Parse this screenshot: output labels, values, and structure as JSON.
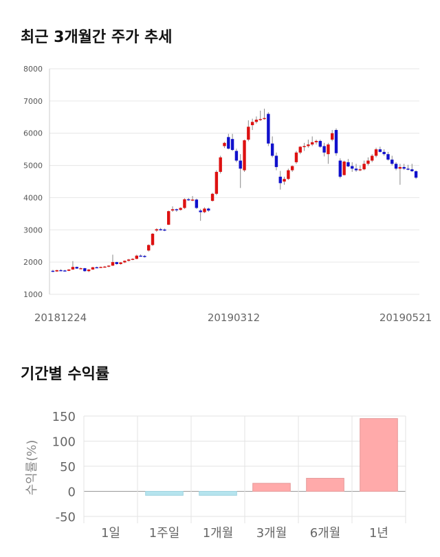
{
  "sections": {
    "price_title": "최근 3개월간 주가 추세",
    "returns_title": "기간별 수익률"
  },
  "chart_data": [
    {
      "type": "candlestick",
      "title": "최근 3개월간 주가 추세",
      "ylim": [
        1000,
        8000
      ],
      "yticks": [
        "8000",
        "7000",
        "6000",
        "5000",
        "4000",
        "3000",
        "2000",
        "1000"
      ],
      "x_labels": [
        "20181224",
        "20190312",
        "20190521"
      ],
      "grid": true,
      "up_color": "#dd1111",
      "down_color": "#1111cc",
      "candles": [
        [
          1730,
          1760,
          1690,
          1710
        ],
        [
          1710,
          1760,
          1700,
          1750
        ],
        [
          1750,
          1780,
          1730,
          1740
        ],
        [
          1740,
          1760,
          1720,
          1730
        ],
        [
          1730,
          1780,
          1720,
          1770
        ],
        [
          1770,
          2030,
          1760,
          1850
        ],
        [
          1850,
          1860,
          1790,
          1800
        ],
        [
          1800,
          1830,
          1780,
          1810
        ],
        [
          1810,
          1820,
          1700,
          1720
        ],
        [
          1720,
          1780,
          1690,
          1770
        ],
        [
          1770,
          1850,
          1760,
          1840
        ],
        [
          1840,
          1860,
          1820,
          1830
        ],
        [
          1830,
          1860,
          1820,
          1850
        ],
        [
          1850,
          1880,
          1830,
          1860
        ],
        [
          1860,
          1900,
          1840,
          1890
        ],
        [
          1890,
          2230,
          1880,
          2000
        ],
        [
          2000,
          2010,
          1920,
          1940
        ],
        [
          1940,
          2000,
          1920,
          1990
        ],
        [
          1990,
          2050,
          1970,
          2040
        ],
        [
          2040,
          2100,
          2020,
          2080
        ],
        [
          2080,
          2120,
          2060,
          2100
        ],
        [
          2100,
          2230,
          2090,
          2200
        ],
        [
          2200,
          2240,
          2170,
          2190
        ],
        [
          2190,
          2220,
          2140,
          2160
        ],
        [
          2360,
          2550,
          2330,
          2530
        ],
        [
          2530,
          2900,
          2500,
          2880
        ],
        [
          2980,
          3050,
          2940,
          3020
        ],
        [
          3020,
          3060,
          2980,
          3010
        ],
        [
          3010,
          3040,
          2960,
          2980
        ],
        [
          3160,
          3600,
          3150,
          3580
        ],
        [
          3600,
          3730,
          3560,
          3640
        ],
        [
          3640,
          3660,
          3560,
          3620
        ],
        [
          3620,
          3700,
          3600,
          3680
        ],
        [
          3680,
          3980,
          3650,
          3950
        ],
        [
          3950,
          3990,
          3900,
          3930
        ],
        [
          3930,
          4050,
          3890,
          3940
        ],
        [
          3940,
          3970,
          3650,
          3680
        ],
        [
          3600,
          3650,
          3280,
          3550
        ],
        [
          3550,
          3700,
          3520,
          3660
        ],
        [
          3660,
          3690,
          3560,
          3600
        ],
        [
          3900,
          4150,
          3880,
          4120
        ],
        [
          4120,
          4850,
          4080,
          4800
        ],
        [
          4800,
          5300,
          4750,
          5250
        ],
        [
          5600,
          5730,
          5540,
          5700
        ],
        [
          5880,
          5980,
          5500,
          5520
        ],
        [
          5820,
          5980,
          5450,
          5480
        ],
        [
          5450,
          5520,
          5100,
          5150
        ],
        [
          5150,
          5350,
          4300,
          4900
        ],
        [
          4850,
          5800,
          4800,
          5780
        ],
        [
          5800,
          6400,
          5750,
          6200
        ],
        [
          6250,
          6450,
          6100,
          6350
        ],
        [
          6350,
          6520,
          6300,
          6420
        ],
        [
          6420,
          6700,
          6380,
          6440
        ],
        [
          6460,
          6760,
          6420,
          6470
        ],
        [
          6600,
          6650,
          5600,
          5680
        ],
        [
          5680,
          5900,
          5250,
          5300
        ],
        [
          5300,
          5400,
          4850,
          4950
        ],
        [
          4650,
          4830,
          4250,
          4450
        ],
        [
          4500,
          4650,
          4400,
          4580
        ],
        [
          4580,
          4900,
          4550,
          4850
        ],
        [
          4850,
          5000,
          4800,
          4980
        ],
        [
          5100,
          5450,
          5050,
          5400
        ],
        [
          5400,
          5600,
          5350,
          5580
        ],
        [
          5580,
          5700,
          5450,
          5600
        ],
        [
          5600,
          5800,
          5550,
          5650
        ],
        [
          5650,
          5900,
          5600,
          5720
        ],
        [
          5720,
          5800,
          5650,
          5760
        ],
        [
          5760,
          5800,
          5550,
          5580
        ],
        [
          5600,
          5700,
          5280,
          5400
        ],
        [
          5350,
          5700,
          5050,
          5650
        ],
        [
          5800,
          6100,
          5750,
          6000
        ],
        [
          6100,
          6150,
          5300,
          5380
        ],
        [
          5150,
          5220,
          4600,
          4650
        ],
        [
          4700,
          5150,
          4690,
          5120
        ],
        [
          5100,
          5200,
          4950,
          4970
        ],
        [
          4980,
          5100,
          4800,
          4900
        ],
        [
          4900,
          5050,
          4800,
          4850
        ],
        [
          4850,
          5000,
          4820,
          4880
        ],
        [
          4880,
          5150,
          4850,
          5050
        ],
        [
          5050,
          5250,
          5000,
          5150
        ],
        [
          5150,
          5350,
          5100,
          5300
        ],
        [
          5300,
          5550,
          5250,
          5500
        ],
        [
          5500,
          5580,
          5400,
          5420
        ],
        [
          5420,
          5500,
          5300,
          5350
        ],
        [
          5350,
          5420,
          5150,
          5180
        ],
        [
          5180,
          5300,
          5000,
          5050
        ],
        [
          5050,
          5100,
          4850,
          4900
        ],
        [
          4900,
          5050,
          4400,
          4950
        ],
        [
          4950,
          5050,
          4860,
          4900
        ],
        [
          4900,
          5020,
          4850,
          4880
        ],
        [
          4880,
          5050,
          4800,
          4820
        ],
        [
          4820,
          4850,
          4580,
          4620
        ]
      ]
    },
    {
      "type": "bar",
      "title": "기간별 수익률",
      "ylabel": "수익률(%)",
      "ylim": [
        -50,
        150
      ],
      "yticks": [
        "150",
        "100",
        "50",
        "0",
        "-50"
      ],
      "categories": [
        "1일",
        "1주일",
        "1개월",
        "3개월",
        "6개월",
        "1년"
      ],
      "values": [
        0,
        -8,
        -8,
        16,
        26,
        145
      ],
      "pos_color": "#ffaaaa",
      "neg_color": "#b6e4ee"
    }
  ]
}
